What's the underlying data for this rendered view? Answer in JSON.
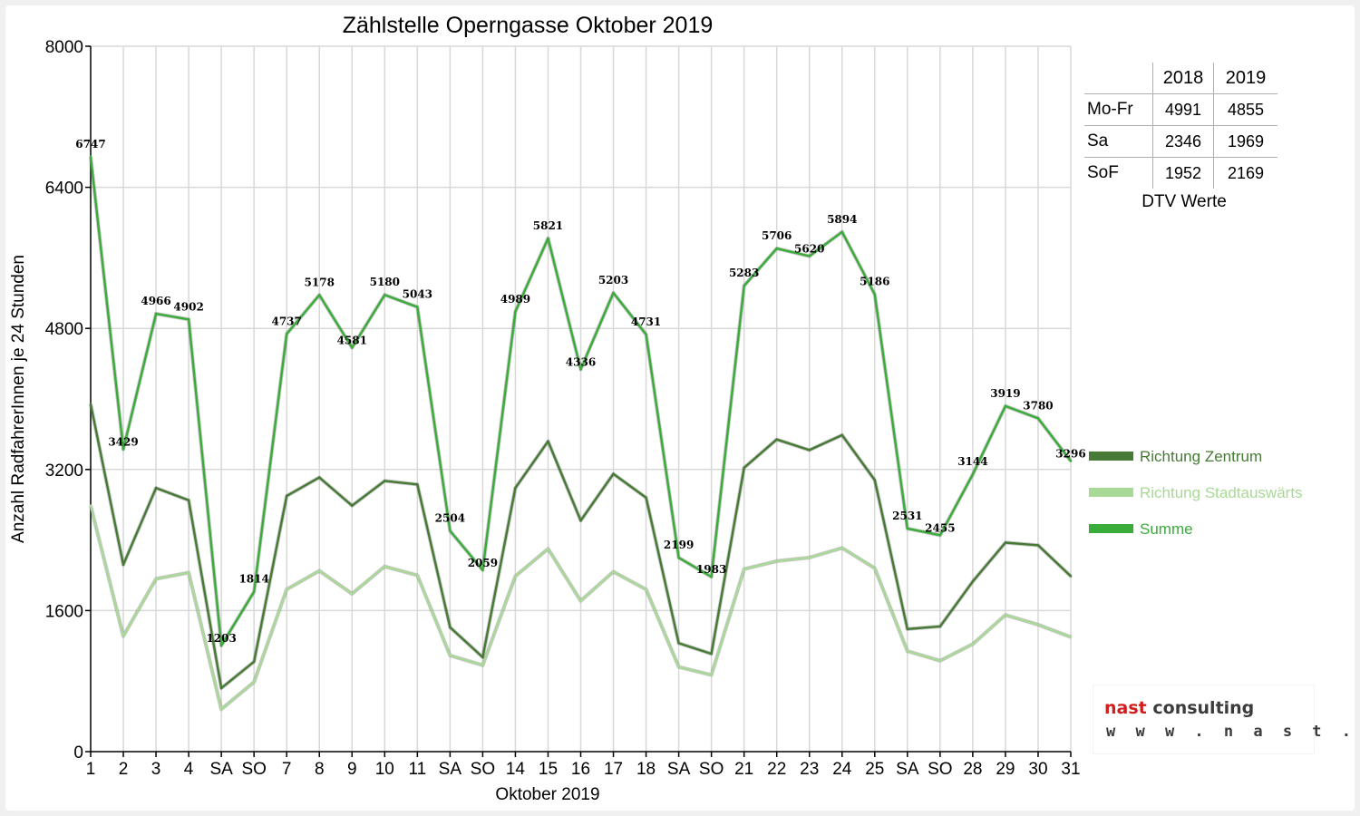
{
  "chart_data": {
    "type": "line",
    "title": "Zählstelle Operngasse Oktober 2019",
    "xlabel": "Oktober 2019",
    "ylabel": "Anzahl RadfahrerInnen je 24 Stunden",
    "ylim": [
      0,
      8000
    ],
    "yticks": [
      "0",
      "1600",
      "3200",
      "4800",
      "6400",
      "8000"
    ],
    "categories": [
      "1",
      "2",
      "3",
      "4",
      "SA",
      "SO",
      "7",
      "8",
      "9",
      "10",
      "11",
      "SA",
      "SO",
      "14",
      "15",
      "16",
      "17",
      "18",
      "SA",
      "SO",
      "21",
      "22",
      "23",
      "24",
      "25",
      "SA",
      "SO",
      "28",
      "29",
      "30",
      "31"
    ],
    "weekend_color": "#e00000",
    "grid": true,
    "legend_position": "right",
    "series": [
      {
        "name": "Richtung Zentrum",
        "color": "#467a35",
        "labels": false,
        "values": [
          3940,
          2120,
          2990,
          2850,
          720,
          1020,
          2900,
          3110,
          2790,
          3070,
          3030,
          1410,
          1070,
          2990,
          3520,
          2620,
          3150,
          2880,
          1230,
          1110,
          3220,
          3540,
          3420,
          3590,
          3080,
          1390,
          1420,
          1930,
          2370,
          2340,
          1990
        ]
      },
      {
        "name": "Richtung Stadtauswärts",
        "color": "#a9d996",
        "labels": false,
        "values": [
          2790,
          1310,
          1960,
          2030,
          480,
          790,
          1840,
          2050,
          1790,
          2100,
          2000,
          1090,
          980,
          1990,
          2300,
          1710,
          2040,
          1840,
          960,
          870,
          2070,
          2160,
          2200,
          2310,
          2080,
          1140,
          1030,
          1220,
          1550,
          1440,
          1300
        ]
      },
      {
        "name": "Summe",
        "color": "#3aac3a",
        "labels": true,
        "values": [
          6747,
          3429,
          4966,
          4902,
          1203,
          1814,
          4737,
          5178,
          4581,
          5180,
          5043,
          2504,
          2059,
          4989,
          5821,
          4336,
          5203,
          4731,
          2199,
          1983,
          5283,
          5706,
          5620,
          5894,
          5186,
          2531,
          2455,
          3144,
          3919,
          3780,
          3296
        ]
      }
    ]
  },
  "dtv_table": {
    "headers": [
      "",
      "2018",
      "2019"
    ],
    "rows": [
      {
        "label": "Mo-Fr",
        "v2018": "4991",
        "v2019": "4855"
      },
      {
        "label": "Sa",
        "v2018": "2346",
        "v2019": "1969"
      },
      {
        "label": "SoF",
        "v2018": "1952",
        "v2019": "2169"
      }
    ],
    "caption": "DTV Werte"
  },
  "logo": {
    "word1": "nast",
    "word2": "consulting",
    "url": "w w w . n a s t . a t"
  }
}
